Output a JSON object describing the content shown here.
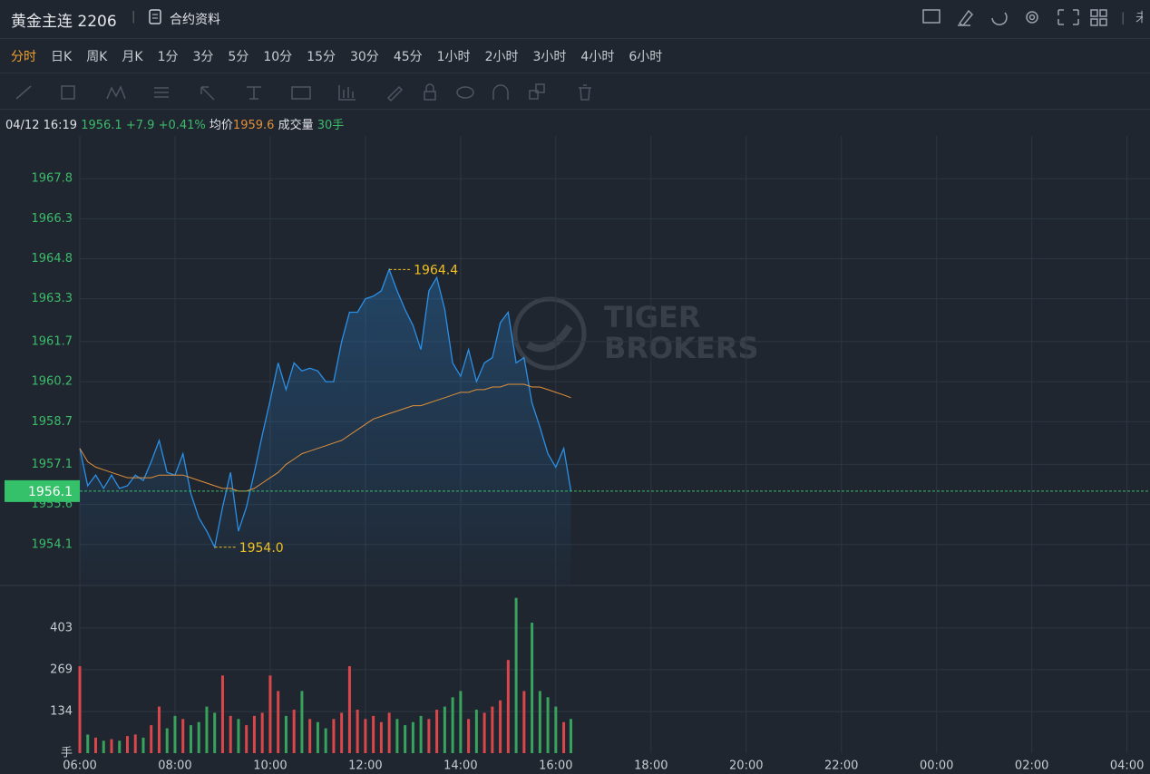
{
  "header": {
    "title": "黄金主连 2206",
    "contract_info": "合约资料",
    "cut_text": "未"
  },
  "tabs": [
    "分时",
    "日K",
    "周K",
    "月K",
    "1分",
    "3分",
    "5分",
    "10分",
    "15分",
    "30分",
    "45分",
    "1小时",
    "2小时",
    "3小时",
    "4小时",
    "6小时"
  ],
  "info": {
    "time": "04/12 16:19",
    "price": "1956.1",
    "change": "+7.9",
    "change_pct": "+0.41%",
    "avg_label": "均价",
    "avg": "1959.6",
    "volume_label": "成交量",
    "volume": "30手"
  },
  "watermark": [
    "TIGER",
    "BROKERS"
  ],
  "chart_data": {
    "type": "line",
    "x": [
      0,
      10,
      20,
      30,
      40,
      50,
      60,
      70,
      80,
      90,
      100,
      110,
      120,
      130,
      140,
      150,
      160,
      170,
      180,
      190,
      200,
      210,
      220,
      230,
      240,
      250,
      260,
      270,
      280,
      290,
      300,
      310,
      320,
      330,
      340,
      350,
      360,
      370,
      380,
      390,
      400,
      410,
      420,
      430,
      440,
      450,
      460,
      470,
      480,
      490,
      500,
      510,
      520,
      530,
      540,
      550,
      560,
      570,
      580,
      590,
      600,
      610,
      619
    ],
    "series": [
      {
        "color": "#2b8fe6",
        "values": [
          1957.7,
          1956.3,
          1956.7,
          1956.2,
          1956.7,
          1956.2,
          1956.3,
          1956.7,
          1956.5,
          1957.2,
          1958.0,
          1956.8,
          1956.7,
          1957.5,
          1956.0,
          1955.1,
          1954.6,
          1954.0,
          1955.5,
          1956.8,
          1954.6,
          1955.5,
          1956.8,
          1958.2,
          1959.5,
          1960.9,
          1959.9,
          1960.9,
          1960.6,
          1960.7,
          1960.6,
          1960.2,
          1960.2,
          1961.7,
          1962.8,
          1962.8,
          1963.3,
          1963.4,
          1963.6,
          1964.4,
          1963.6,
          1962.9,
          1962.3,
          1961.4,
          1963.6,
          1964.1,
          1962.9,
          1960.9,
          1960.4,
          1961.4,
          1960.2,
          1960.9,
          1961.1,
          1962.4,
          1962.8,
          1960.9,
          1961.1,
          1959.4,
          1958.5,
          1957.5,
          1957.0,
          1957.7,
          1956.1
        ]
      },
      {
        "color": "#e0903a",
        "values": [
          1957.7,
          1957.2,
          1957.0,
          1956.9,
          1956.8,
          1956.7,
          1956.6,
          1956.6,
          1956.6,
          1956.6,
          1956.7,
          1956.7,
          1956.7,
          1956.7,
          1956.6,
          1956.5,
          1956.4,
          1956.3,
          1956.2,
          1956.2,
          1956.1,
          1956.1,
          1956.2,
          1956.4,
          1956.6,
          1956.8,
          1957.1,
          1957.3,
          1957.5,
          1957.6,
          1957.7,
          1957.8,
          1957.9,
          1958.0,
          1958.2,
          1958.4,
          1958.6,
          1958.8,
          1958.9,
          1959.0,
          1959.1,
          1959.2,
          1959.3,
          1959.3,
          1959.4,
          1959.5,
          1959.6,
          1959.7,
          1959.8,
          1959.8,
          1959.9,
          1959.9,
          1960.0,
          1960.0,
          1960.1,
          1960.1,
          1960.1,
          1960.0,
          1960.0,
          1959.9,
          1959.8,
          1959.7,
          1959.6
        ]
      }
    ],
    "xlim": [
      0,
      1349
    ],
    "xticks": [
      {
        "value": 0,
        "label": "06:00"
      },
      {
        "value": 120,
        "label": "08:00"
      },
      {
        "value": 240,
        "label": "10:00"
      },
      {
        "value": 360,
        "label": "12:00"
      },
      {
        "value": 480,
        "label": "14:00"
      },
      {
        "value": 600,
        "label": "16:00"
      },
      {
        "value": 720,
        "label": "18:00"
      },
      {
        "value": 840,
        "label": "20:00"
      },
      {
        "value": 960,
        "label": "22:00"
      },
      {
        "value": 1080,
        "label": "00:00"
      },
      {
        "value": 1200,
        "label": "02:00"
      },
      {
        "value": 1320,
        "label": "04:00"
      }
    ],
    "ylim": [
      1952.6,
      1969.4
    ],
    "yticks": [
      1954.1,
      1955.6,
      1957.1,
      1958.7,
      1960.2,
      1961.7,
      1963.3,
      1964.8,
      1966.3,
      1967.8
    ],
    "grid": true,
    "last_price": 1956.1,
    "annotations": [
      {
        "x": 390,
        "value": 1964.4,
        "label": "1964.4"
      },
      {
        "x": 170,
        "value": 1954.0,
        "label": "1954.0"
      }
    ],
    "volume": {
      "values": [
        280,
        60,
        50,
        40,
        45,
        40,
        55,
        60,
        50,
        90,
        150,
        80,
        120,
        110,
        90,
        100,
        150,
        130,
        250,
        120,
        110,
        90,
        120,
        130,
        250,
        200,
        120,
        140,
        200,
        110,
        100,
        80,
        110,
        130,
        280,
        140,
        110,
        120,
        100,
        130,
        110,
        90,
        100,
        120,
        110,
        140,
        150,
        180,
        200,
        110,
        140,
        130,
        150,
        170,
        300,
        500,
        200,
        420,
        200,
        180,
        150,
        100,
        110
      ],
      "ylim": [
        0,
        534
      ],
      "yticks": [
        {
          "value": 0,
          "label": "手"
        },
        134,
        269,
        403
      ],
      "up_color": "#d9474a",
      "down_color": "#38a35d"
    }
  }
}
